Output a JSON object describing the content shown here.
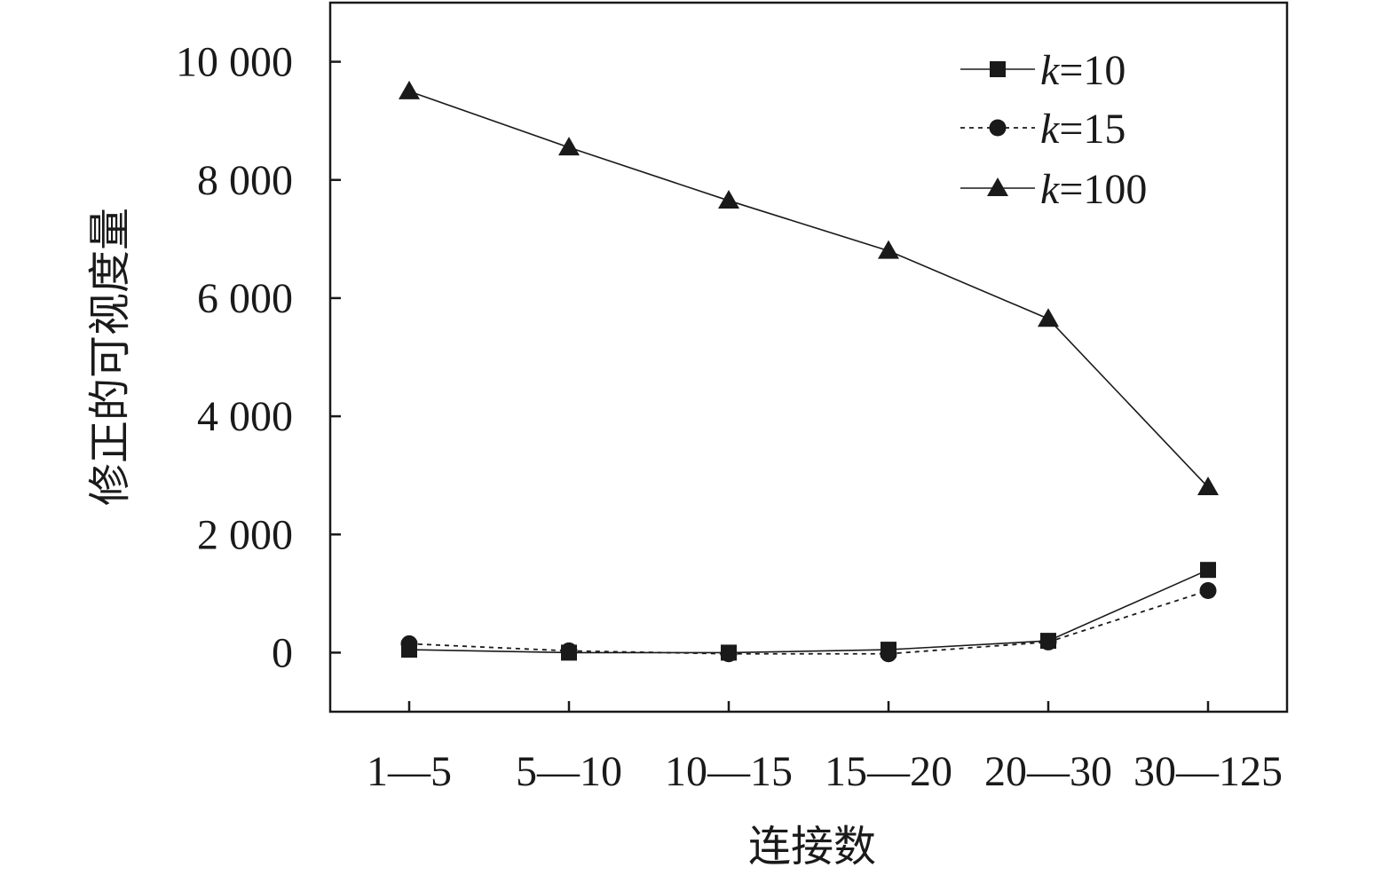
{
  "chart_data": {
    "type": "line",
    "title": "",
    "xlabel": "连接数",
    "ylabel": "修正的可视度量",
    "categories": [
      "1—5",
      "5—10",
      "10—15",
      "15—20",
      "20—30",
      "30—125"
    ],
    "ylim": [
      -1000,
      11000
    ],
    "yticks": [
      0,
      2000,
      4000,
      6000,
      8000,
      10000
    ],
    "ytick_labels": [
      "0",
      "2 000",
      "4 000",
      "6 000",
      "8 000",
      "10 000"
    ],
    "grid": false,
    "legend_position": "top-right",
    "series": [
      {
        "name_prefix": "k",
        "name_suffix": "=10",
        "marker": "square",
        "line_style": "solid",
        "values": [
          50,
          0,
          0,
          50,
          200,
          1400
        ]
      },
      {
        "name_prefix": "k",
        "name_suffix": "=15",
        "marker": "circle",
        "line_style": "dotted",
        "values": [
          150,
          30,
          -20,
          -20,
          180,
          1050
        ]
      },
      {
        "name_prefix": "k",
        "name_suffix": "=100",
        "marker": "triangle",
        "line_style": "solid",
        "values": [
          9500,
          8550,
          7650,
          6800,
          5650,
          2800
        ]
      }
    ]
  }
}
